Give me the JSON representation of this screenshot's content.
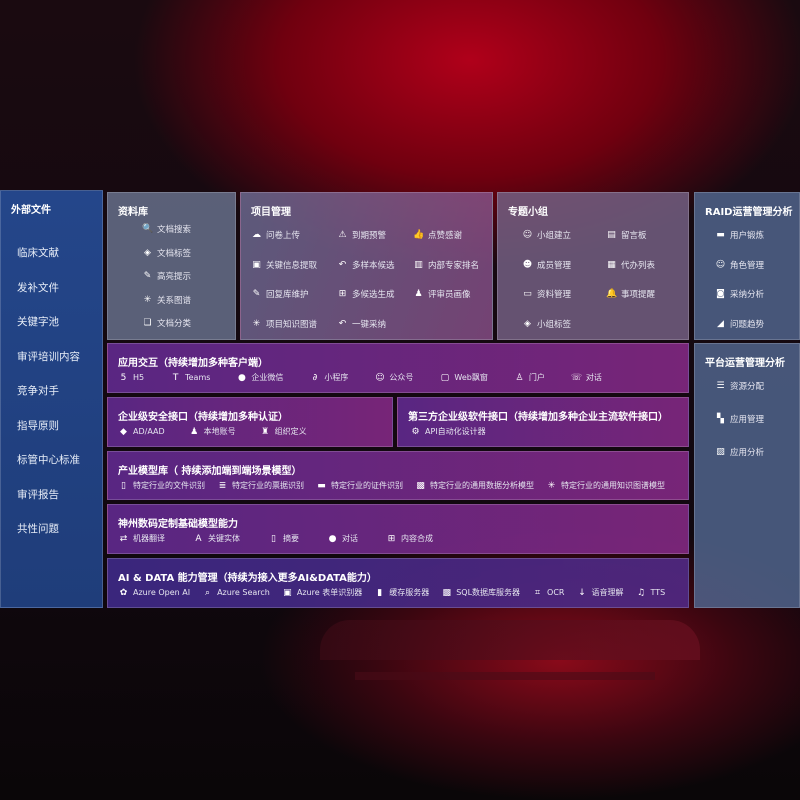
{
  "external": {
    "title": "外部文件",
    "items": [
      "临床文献",
      "发补文件",
      "关键字池",
      "审评培训内容",
      "竞争对手",
      "指导原则",
      "标管中心标准",
      "审评报告",
      "共性问题"
    ]
  },
  "library": {
    "title": "资料库",
    "items": [
      {
        "icon": "doc-search-icon",
        "label": "文档搜索"
      },
      {
        "icon": "tag-icon",
        "label": "文档标签"
      },
      {
        "icon": "pen-icon",
        "label": "高亮提示"
      },
      {
        "icon": "graph-icon",
        "label": "关系图谱"
      },
      {
        "icon": "doc-stack-icon",
        "label": "文档分类"
      }
    ]
  },
  "project": {
    "title": "项目管理",
    "items": [
      {
        "icon": "cloud-upload-icon",
        "label": "问卷上传"
      },
      {
        "icon": "alarm-icon",
        "label": "到期预警"
      },
      {
        "icon": "thumbs-up-icon",
        "label": "点赞感谢"
      },
      {
        "icon": "extract-icon",
        "label": "关键信息提取"
      },
      {
        "icon": "reply-icon",
        "label": "多样本候选"
      },
      {
        "icon": "rank-icon",
        "label": "内部专家排名"
      },
      {
        "icon": "edit-icon",
        "label": "回复库维护"
      },
      {
        "icon": "puzzle-icon",
        "label": "多候选生成"
      },
      {
        "icon": "person-icon",
        "label": "评审员画像"
      },
      {
        "icon": "graph-icon",
        "label": "项目知识图谱"
      },
      {
        "icon": "reply-icon",
        "label": "一键采纳"
      }
    ]
  },
  "group": {
    "title": "专题小组",
    "items": [
      {
        "icon": "group-icon",
        "label": "小组建立"
      },
      {
        "icon": "bbs-icon",
        "label": "留言板"
      },
      {
        "icon": "add-user-icon",
        "label": "成员管理"
      },
      {
        "icon": "clipboard-icon",
        "label": "代办列表"
      },
      {
        "icon": "folder-icon",
        "label": "资料管理"
      },
      {
        "icon": "bell-icon",
        "label": "事项提醒"
      },
      {
        "icon": "tag-icon",
        "label": "小组标签"
      }
    ]
  },
  "raid": {
    "title": "RAID运营管理分析",
    "items": [
      {
        "icon": "id-card-icon",
        "label": "用户锻炼"
      },
      {
        "icon": "users-icon",
        "label": "角色管理"
      },
      {
        "icon": "qa-icon",
        "label": "采纳分析"
      },
      {
        "icon": "trend-icon",
        "label": "问题趋势"
      }
    ]
  },
  "platform": {
    "title": "平台运营管理分析",
    "items": [
      {
        "icon": "list-icon",
        "label": "资源分配"
      },
      {
        "icon": "apps-icon",
        "label": "应用管理"
      },
      {
        "icon": "chart-icon",
        "label": "应用分析"
      }
    ]
  },
  "app": {
    "title": "应用交互（持续增加多种客户端）",
    "items": [
      {
        "icon": "html5-icon",
        "label": "H5"
      },
      {
        "icon": "teams-icon",
        "label": "Teams"
      },
      {
        "icon": "wechat-icon",
        "label": "企业微信"
      },
      {
        "icon": "miniprogram-icon",
        "label": "小程序"
      },
      {
        "icon": "users-icon",
        "label": "公众号"
      },
      {
        "icon": "window-icon",
        "label": "Web飘窗"
      },
      {
        "icon": "portal-icon",
        "label": "门户"
      },
      {
        "icon": "chat-users-icon",
        "label": "对话"
      }
    ]
  },
  "security": {
    "title": "企业级安全接口（持续增加多种认证）",
    "items": [
      {
        "icon": "diamond-icon",
        "label": "AD/AAD"
      },
      {
        "icon": "user-icon",
        "label": "本地账号"
      },
      {
        "icon": "org-icon",
        "label": "组织定义"
      }
    ]
  },
  "thirdparty": {
    "title": "第三方企业级软件接口（持续增加多种企业主流软件接口）",
    "items": [
      {
        "icon": "gear-icon",
        "label": "API自动化设计器"
      }
    ]
  },
  "industry": {
    "title": "产业模型库（ 持续添加端到端场景模型）",
    "items": [
      {
        "icon": "file-icon",
        "label": "特定行业的文件识别"
      },
      {
        "icon": "receipt-icon",
        "label": "特定行业的票据识别"
      },
      {
        "icon": "id-card-icon",
        "label": "特定行业的证件识别"
      },
      {
        "icon": "data-icon",
        "label": "特定行业的通用数据分析模型"
      },
      {
        "icon": "graph-icon",
        "label": "特定行业的通用知识图谱模型"
      }
    ]
  },
  "base": {
    "title": "神州数码定制基础模型能力",
    "items": [
      {
        "icon": "translate-icon",
        "label": "机器翻译"
      },
      {
        "icon": "entity-icon",
        "label": "关键实体"
      },
      {
        "icon": "doc-icon",
        "label": "摘要"
      },
      {
        "icon": "chat-icon",
        "label": "对话"
      },
      {
        "icon": "puzzle-icon",
        "label": "内容合成"
      }
    ]
  },
  "ai": {
    "title": "AI & DATA 能力管理（持续为接入更多AI&DATA能力）",
    "items": [
      {
        "icon": "openai-icon",
        "label": "Azure Open AI"
      },
      {
        "icon": "search-doc-icon",
        "label": "Azure Search"
      },
      {
        "icon": "form-icon",
        "label": "Azure 表单识别器"
      },
      {
        "icon": "cache-icon",
        "label": "缓存服务器"
      },
      {
        "icon": "sql-icon",
        "label": "SQL数据库服务器"
      },
      {
        "icon": "ocr-icon",
        "label": "OCR"
      },
      {
        "icon": "voice-icon",
        "label": "语音理解"
      },
      {
        "icon": "tts-icon",
        "label": "TTS"
      }
    ]
  }
}
